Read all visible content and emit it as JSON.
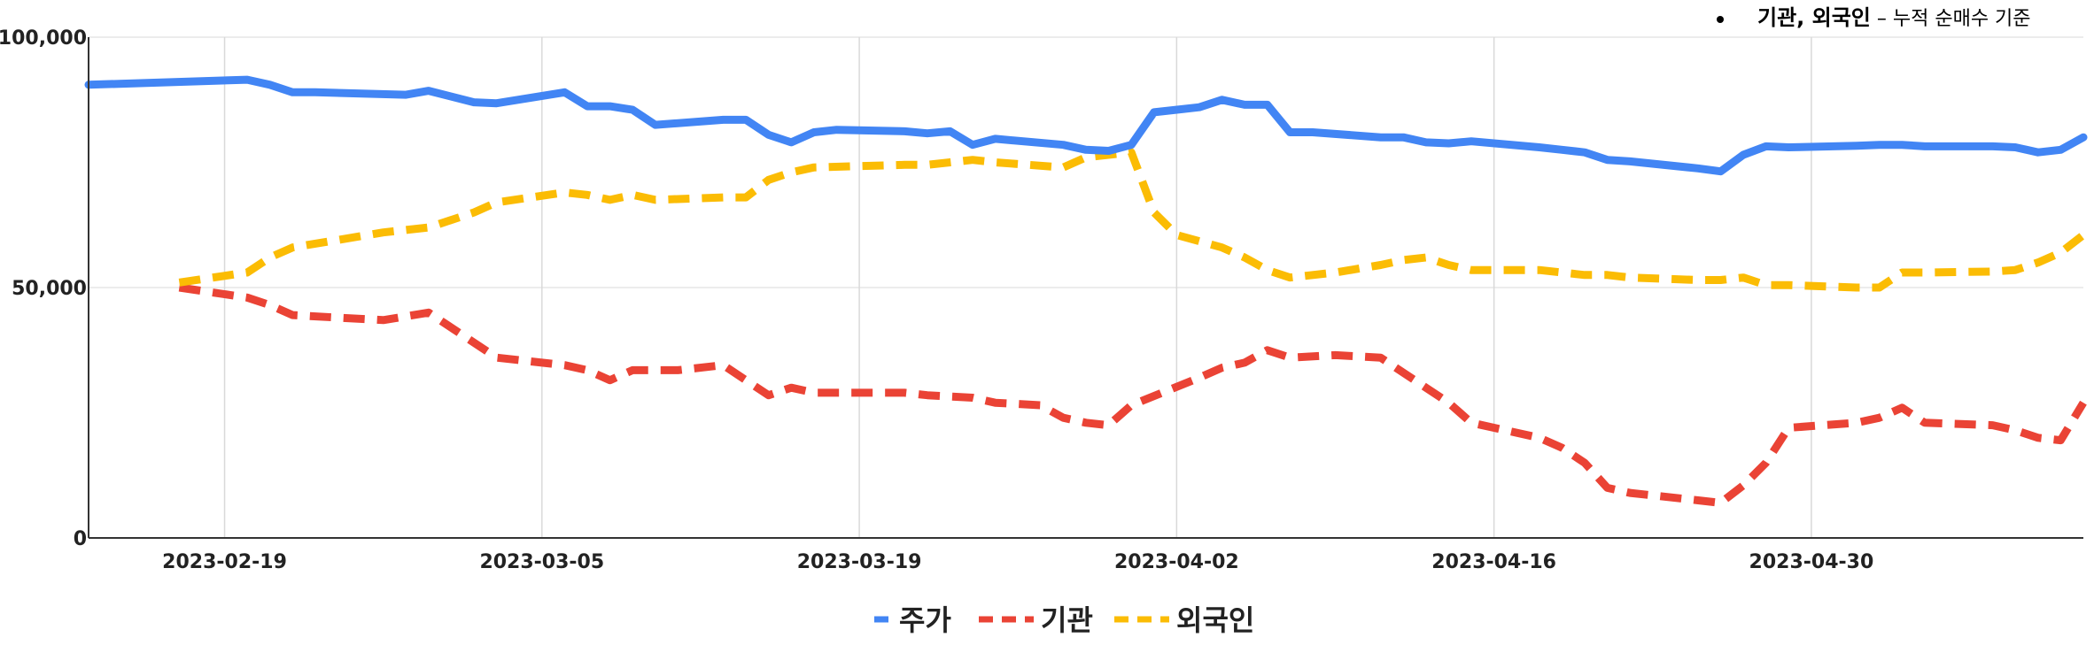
{
  "chart_data": {
    "type": "line",
    "note": {
      "bold": "기관, 외국인",
      "rest": " – 누적 순매수 기준"
    },
    "x_start": "2023-02-13",
    "x_end": "2023-05-12",
    "x_ticks": [
      "2023-02-19",
      "2023-03-05",
      "2023-03-19",
      "2023-04-02",
      "2023-04-16",
      "2023-04-30"
    ],
    "y_ticks": [
      0,
      50000,
      100000
    ],
    "y_tick_labels": [
      "0",
      "50,000",
      "100,000"
    ],
    "ylim": [
      0,
      100000
    ],
    "grid": true,
    "legend_position": "bottom",
    "series": [
      {
        "name": "주가",
        "color": "#4285F4",
        "dash": "solid",
        "points": [
          [
            "2023-02-13",
            90500
          ],
          [
            "2023-02-20",
            91500
          ],
          [
            "2023-02-21",
            90500
          ],
          [
            "2023-02-22",
            89000
          ],
          [
            "2023-02-23",
            89000
          ],
          [
            "2023-02-27",
            88500
          ],
          [
            "2023-02-28",
            89300
          ],
          [
            "2023-03-02",
            87000
          ],
          [
            "2023-03-03",
            86800
          ],
          [
            "2023-03-06",
            89000
          ],
          [
            "2023-03-07",
            86200
          ],
          [
            "2023-03-08",
            86200
          ],
          [
            "2023-03-09",
            85500
          ],
          [
            "2023-03-10",
            82500
          ],
          [
            "2023-03-13",
            83500
          ],
          [
            "2023-03-14",
            83500
          ],
          [
            "2023-03-15",
            80500
          ],
          [
            "2023-03-16",
            79000
          ],
          [
            "2023-03-17",
            81000
          ],
          [
            "2023-03-18",
            81500
          ],
          [
            "2023-03-21",
            81200
          ],
          [
            "2023-03-22",
            80800
          ],
          [
            "2023-03-23",
            81200
          ],
          [
            "2023-03-24",
            78500
          ],
          [
            "2023-03-25",
            79700
          ],
          [
            "2023-03-28",
            78500
          ],
          [
            "2023-03-29",
            77500
          ],
          [
            "2023-03-30",
            77300
          ],
          [
            "2023-03-31",
            78500
          ],
          [
            "2023-04-01",
            85000
          ],
          [
            "2023-04-03",
            86000
          ],
          [
            "2023-04-04",
            87500
          ],
          [
            "2023-04-05",
            86500
          ],
          [
            "2023-04-06",
            86500
          ],
          [
            "2023-04-07",
            81000
          ],
          [
            "2023-04-08",
            81000
          ],
          [
            "2023-04-11",
            80000
          ],
          [
            "2023-04-12",
            80000
          ],
          [
            "2023-04-13",
            79000
          ],
          [
            "2023-04-14",
            78800
          ],
          [
            "2023-04-15",
            79200
          ],
          [
            "2023-04-18",
            78000
          ],
          [
            "2023-04-19",
            77500
          ],
          [
            "2023-04-20",
            77000
          ],
          [
            "2023-04-21",
            75500
          ],
          [
            "2023-04-22",
            75200
          ],
          [
            "2023-04-25",
            73800
          ],
          [
            "2023-04-26",
            73200
          ],
          [
            "2023-04-27",
            76500
          ],
          [
            "2023-04-28",
            78200
          ],
          [
            "2023-04-29",
            78000
          ],
          [
            "2023-05-02",
            78300
          ],
          [
            "2023-05-03",
            78500
          ],
          [
            "2023-05-04",
            78500
          ],
          [
            "2023-05-05",
            78200
          ],
          [
            "2023-05-08",
            78200
          ],
          [
            "2023-05-09",
            78000
          ],
          [
            "2023-05-10",
            77000
          ],
          [
            "2023-05-11",
            77500
          ],
          [
            "2023-05-12",
            80000
          ]
        ]
      },
      {
        "name": "기관",
        "color": "#EA4335",
        "dash": "long-dash",
        "points": [
          [
            "2023-02-17",
            50000
          ],
          [
            "2023-02-20",
            48000
          ],
          [
            "2023-02-21",
            46500
          ],
          [
            "2023-02-22",
            44500
          ],
          [
            "2023-02-24",
            44000
          ],
          [
            "2023-02-26",
            43500
          ],
          [
            "2023-02-28",
            45000
          ],
          [
            "2023-03-03",
            36000
          ],
          [
            "2023-03-06",
            34500
          ],
          [
            "2023-03-07",
            33500
          ],
          [
            "2023-03-08",
            31500
          ],
          [
            "2023-03-09",
            33500
          ],
          [
            "2023-03-11",
            33500
          ],
          [
            "2023-03-13",
            34500
          ],
          [
            "2023-03-15",
            28500
          ],
          [
            "2023-03-16",
            30000
          ],
          [
            "2023-03-17",
            29000
          ],
          [
            "2023-03-21",
            29000
          ],
          [
            "2023-03-22",
            28500
          ],
          [
            "2023-03-24",
            28000
          ],
          [
            "2023-03-25",
            27000
          ],
          [
            "2023-03-27",
            26500
          ],
          [
            "2023-03-28",
            24000
          ],
          [
            "2023-03-29",
            23000
          ],
          [
            "2023-03-30",
            22500
          ],
          [
            "2023-03-31",
            26500
          ],
          [
            "2023-04-03",
            32000
          ],
          [
            "2023-04-04",
            34000
          ],
          [
            "2023-04-05",
            35000
          ],
          [
            "2023-04-06",
            37500
          ],
          [
            "2023-04-07",
            36000
          ],
          [
            "2023-04-09",
            36500
          ],
          [
            "2023-04-11",
            36000
          ],
          [
            "2023-04-12",
            33000
          ],
          [
            "2023-04-13",
            30000
          ],
          [
            "2023-04-14",
            27000
          ],
          [
            "2023-04-15",
            23000
          ],
          [
            "2023-04-18",
            20000
          ],
          [
            "2023-04-19",
            18000
          ],
          [
            "2023-04-20",
            15000
          ],
          [
            "2023-04-21",
            10000
          ],
          [
            "2023-04-22",
            9000
          ],
          [
            "2023-04-25",
            7500
          ],
          [
            "2023-04-26",
            7000
          ],
          [
            "2023-04-27",
            10500
          ],
          [
            "2023-04-28",
            15000
          ],
          [
            "2023-04-29",
            22000
          ],
          [
            "2023-05-02",
            23000
          ],
          [
            "2023-05-03",
            24000
          ],
          [
            "2023-05-04",
            26000
          ],
          [
            "2023-05-05",
            23000
          ],
          [
            "2023-05-08",
            22500
          ],
          [
            "2023-05-09",
            21500
          ],
          [
            "2023-05-10",
            20000
          ],
          [
            "2023-05-11",
            19500
          ],
          [
            "2023-05-12",
            27000
          ]
        ]
      },
      {
        "name": "외국인",
        "color": "#FBBC04",
        "dash": "long-dash",
        "points": [
          [
            "2023-02-17",
            51000
          ],
          [
            "2023-02-20",
            53000
          ],
          [
            "2023-02-21",
            56000
          ],
          [
            "2023-02-22",
            58000
          ],
          [
            "2023-02-24",
            59500
          ],
          [
            "2023-02-26",
            61000
          ],
          [
            "2023-02-28",
            62000
          ],
          [
            "2023-03-02",
            65000
          ],
          [
            "2023-03-03",
            67000
          ],
          [
            "2023-03-06",
            69000
          ],
          [
            "2023-03-07",
            68500
          ],
          [
            "2023-03-08",
            67500
          ],
          [
            "2023-03-09",
            68500
          ],
          [
            "2023-03-10",
            67500
          ],
          [
            "2023-03-13",
            68000
          ],
          [
            "2023-03-14",
            68000
          ],
          [
            "2023-03-15",
            71500
          ],
          [
            "2023-03-16",
            73000
          ],
          [
            "2023-03-17",
            74000
          ],
          [
            "2023-03-21",
            74500
          ],
          [
            "2023-03-22",
            74500
          ],
          [
            "2023-03-23",
            75000
          ],
          [
            "2023-03-24",
            75500
          ],
          [
            "2023-03-25",
            75000
          ],
          [
            "2023-03-28",
            74000
          ],
          [
            "2023-03-29",
            76000
          ],
          [
            "2023-03-31",
            77000
          ],
          [
            "2023-04-01",
            65000
          ],
          [
            "2023-04-02",
            60500
          ],
          [
            "2023-04-04",
            58000
          ],
          [
            "2023-04-05",
            56000
          ],
          [
            "2023-04-06",
            53500
          ],
          [
            "2023-04-07",
            52000
          ],
          [
            "2023-04-09",
            53000
          ],
          [
            "2023-04-11",
            54500
          ],
          [
            "2023-04-12",
            55500
          ],
          [
            "2023-04-13",
            56000
          ],
          [
            "2023-04-14",
            54500
          ],
          [
            "2023-04-15",
            53500
          ],
          [
            "2023-04-18",
            53500
          ],
          [
            "2023-04-19",
            53000
          ],
          [
            "2023-04-20",
            52500
          ],
          [
            "2023-04-21",
            52500
          ],
          [
            "2023-04-22",
            52000
          ],
          [
            "2023-04-25",
            51500
          ],
          [
            "2023-04-26",
            51500
          ],
          [
            "2023-04-27",
            52000
          ],
          [
            "2023-04-28",
            50500
          ],
          [
            "2023-04-29",
            50500
          ],
          [
            "2023-05-02",
            50000
          ],
          [
            "2023-05-03",
            50000
          ],
          [
            "2023-05-04",
            53000
          ],
          [
            "2023-05-05",
            53000
          ],
          [
            "2023-05-08",
            53200
          ],
          [
            "2023-05-09",
            53500
          ],
          [
            "2023-05-10",
            55000
          ],
          [
            "2023-05-11",
            57000
          ],
          [
            "2023-05-12",
            60500
          ]
        ]
      }
    ]
  }
}
